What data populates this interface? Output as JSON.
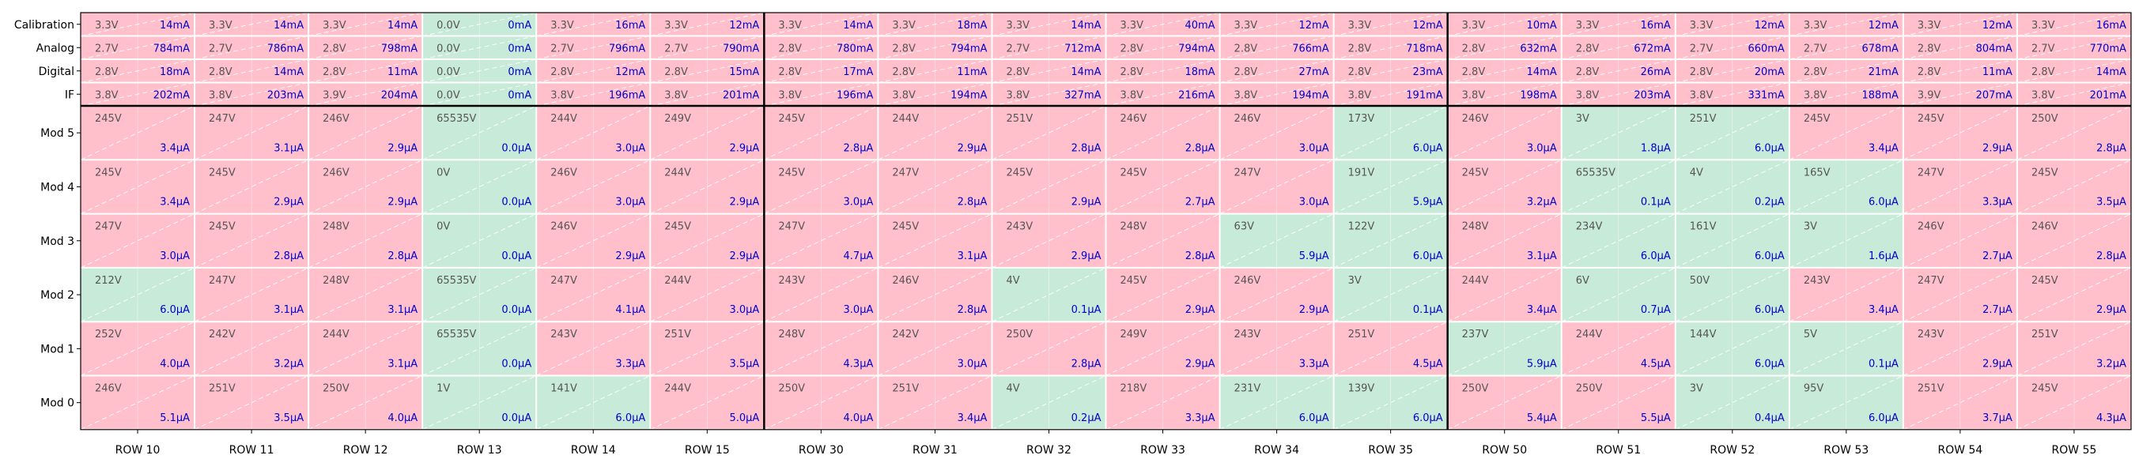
{
  "colors": {
    "fault": "#ffc0cb",
    "ok": "#c8ead8",
    "voltage_text": "#555555",
    "current_text": "#0000cc",
    "grid": "#ffffff",
    "frame": "#000000"
  },
  "chart_data": {
    "type": "heatmap",
    "title": "",
    "xlabel": "",
    "ylabel": "",
    "columns": [
      "ROW 10",
      "ROW 11",
      "ROW 12",
      "ROW 13",
      "ROW 14",
      "ROW 15",
      "ROW 30",
      "ROW 31",
      "ROW 32",
      "ROW 33",
      "ROW 34",
      "ROW 35",
      "ROW 50",
      "ROW 51",
      "ROW 52",
      "ROW 53",
      "ROW 54",
      "ROW 55"
    ],
    "group_boundaries_after_column": [
      5,
      11
    ],
    "power_rows": [
      {
        "label": "Calibration",
        "cells": [
          {
            "v": "3.3V",
            "c": "14mA"
          },
          {
            "v": "3.3V",
            "c": "14mA"
          },
          {
            "v": "3.3V",
            "c": "14mA"
          },
          {
            "v": "0.0V",
            "c": "0mA",
            "ok": true
          },
          {
            "v": "3.3V",
            "c": "16mA"
          },
          {
            "v": "3.3V",
            "c": "12mA"
          },
          {
            "v": "3.3V",
            "c": "14mA"
          },
          {
            "v": "3.3V",
            "c": "18mA"
          },
          {
            "v": "3.3V",
            "c": "14mA"
          },
          {
            "v": "3.3V",
            "c": "40mA"
          },
          {
            "v": "3.3V",
            "c": "12mA"
          },
          {
            "v": "3.3V",
            "c": "12mA"
          },
          {
            "v": "3.3V",
            "c": "10mA"
          },
          {
            "v": "3.3V",
            "c": "16mA"
          },
          {
            "v": "3.3V",
            "c": "12mA"
          },
          {
            "v": "3.3V",
            "c": "12mA"
          },
          {
            "v": "3.3V",
            "c": "12mA"
          },
          {
            "v": "3.3V",
            "c": "16mA"
          }
        ]
      },
      {
        "label": "Analog",
        "cells": [
          {
            "v": "2.7V",
            "c": "784mA"
          },
          {
            "v": "2.7V",
            "c": "786mA"
          },
          {
            "v": "2.8V",
            "c": "798mA"
          },
          {
            "v": "0.0V",
            "c": "0mA",
            "ok": true
          },
          {
            "v": "2.7V",
            "c": "796mA"
          },
          {
            "v": "2.7V",
            "c": "790mA"
          },
          {
            "v": "2.8V",
            "c": "780mA"
          },
          {
            "v": "2.8V",
            "c": "794mA"
          },
          {
            "v": "2.7V",
            "c": "712mA"
          },
          {
            "v": "2.8V",
            "c": "794mA"
          },
          {
            "v": "2.8V",
            "c": "766mA"
          },
          {
            "v": "2.8V",
            "c": "718mA"
          },
          {
            "v": "2.8V",
            "c": "632mA"
          },
          {
            "v": "2.8V",
            "c": "672mA"
          },
          {
            "v": "2.7V",
            "c": "660mA"
          },
          {
            "v": "2.7V",
            "c": "678mA"
          },
          {
            "v": "2.8V",
            "c": "804mA"
          },
          {
            "v": "2.7V",
            "c": "770mA"
          }
        ]
      },
      {
        "label": "Digital",
        "cells": [
          {
            "v": "2.8V",
            "c": "18mA"
          },
          {
            "v": "2.8V",
            "c": "14mA"
          },
          {
            "v": "2.8V",
            "c": "11mA"
          },
          {
            "v": "0.0V",
            "c": "0mA",
            "ok": true
          },
          {
            "v": "2.8V",
            "c": "12mA"
          },
          {
            "v": "2.8V",
            "c": "15mA"
          },
          {
            "v": "2.8V",
            "c": "17mA"
          },
          {
            "v": "2.8V",
            "c": "11mA"
          },
          {
            "v": "2.8V",
            "c": "14mA"
          },
          {
            "v": "2.8V",
            "c": "18mA"
          },
          {
            "v": "2.8V",
            "c": "27mA"
          },
          {
            "v": "2.8V",
            "c": "23mA"
          },
          {
            "v": "2.8V",
            "c": "14mA"
          },
          {
            "v": "2.8V",
            "c": "26mA"
          },
          {
            "v": "2.8V",
            "c": "20mA"
          },
          {
            "v": "2.8V",
            "c": "21mA"
          },
          {
            "v": "2.8V",
            "c": "11mA"
          },
          {
            "v": "2.8V",
            "c": "14mA"
          }
        ]
      },
      {
        "label": "IF",
        "cells": [
          {
            "v": "3.8V",
            "c": "202mA"
          },
          {
            "v": "3.8V",
            "c": "203mA"
          },
          {
            "v": "3.9V",
            "c": "204mA"
          },
          {
            "v": "0.0V",
            "c": "0mA",
            "ok": true
          },
          {
            "v": "3.8V",
            "c": "196mA"
          },
          {
            "v": "3.8V",
            "c": "201mA"
          },
          {
            "v": "3.8V",
            "c": "196mA"
          },
          {
            "v": "3.8V",
            "c": "194mA"
          },
          {
            "v": "3.8V",
            "c": "327mA"
          },
          {
            "v": "3.8V",
            "c": "216mA"
          },
          {
            "v": "3.8V",
            "c": "194mA"
          },
          {
            "v": "3.8V",
            "c": "191mA"
          },
          {
            "v": "3.8V",
            "c": "198mA"
          },
          {
            "v": "3.8V",
            "c": "203mA"
          },
          {
            "v": "3.8V",
            "c": "331mA"
          },
          {
            "v": "3.8V",
            "c": "188mA"
          },
          {
            "v": "3.9V",
            "c": "207mA"
          },
          {
            "v": "3.8V",
            "c": "201mA"
          }
        ]
      }
    ],
    "module_rows": [
      {
        "label": "Mod 5",
        "cells": [
          {
            "v": "245V",
            "c": "3.4µA"
          },
          {
            "v": "247V",
            "c": "3.1µA"
          },
          {
            "v": "246V",
            "c": "2.9µA"
          },
          {
            "v": "65535V",
            "c": "0.0µA",
            "ok": true
          },
          {
            "v": "244V",
            "c": "3.0µA"
          },
          {
            "v": "249V",
            "c": "2.9µA"
          },
          {
            "v": "245V",
            "c": "2.8µA"
          },
          {
            "v": "244V",
            "c": "2.9µA"
          },
          {
            "v": "251V",
            "c": "2.8µA"
          },
          {
            "v": "246V",
            "c": "2.8µA"
          },
          {
            "v": "246V",
            "c": "3.0µA"
          },
          {
            "v": "173V",
            "c": "6.0µA",
            "ok": true
          },
          {
            "v": "246V",
            "c": "3.0µA"
          },
          {
            "v": "3V",
            "c": "1.8µA",
            "ok": true
          },
          {
            "v": "251V",
            "c": "6.0µA",
            "ok": true
          },
          {
            "v": "245V",
            "c": "3.4µA"
          },
          {
            "v": "245V",
            "c": "2.9µA"
          },
          {
            "v": "250V",
            "c": "2.8µA"
          }
        ]
      },
      {
        "label": "Mod 4",
        "cells": [
          {
            "v": "245V",
            "c": "3.4µA"
          },
          {
            "v": "245V",
            "c": "2.9µA"
          },
          {
            "v": "246V",
            "c": "2.9µA"
          },
          {
            "v": "0V",
            "c": "0.0µA",
            "ok": true
          },
          {
            "v": "246V",
            "c": "3.0µA"
          },
          {
            "v": "244V",
            "c": "2.9µA"
          },
          {
            "v": "245V",
            "c": "3.0µA"
          },
          {
            "v": "247V",
            "c": "2.8µA"
          },
          {
            "v": "245V",
            "c": "2.9µA"
          },
          {
            "v": "245V",
            "c": "2.7µA"
          },
          {
            "v": "247V",
            "c": "3.0µA"
          },
          {
            "v": "191V",
            "c": "5.9µA",
            "ok": true
          },
          {
            "v": "245V",
            "c": "3.2µA"
          },
          {
            "v": "65535V",
            "c": "0.1µA",
            "ok": true
          },
          {
            "v": "4V",
            "c": "0.2µA",
            "ok": true
          },
          {
            "v": "165V",
            "c": "6.0µA",
            "ok": true
          },
          {
            "v": "247V",
            "c": "3.3µA"
          },
          {
            "v": "245V",
            "c": "3.5µA"
          }
        ]
      },
      {
        "label": "Mod 3",
        "cells": [
          {
            "v": "247V",
            "c": "3.0µA"
          },
          {
            "v": "245V",
            "c": "2.8µA"
          },
          {
            "v": "248V",
            "c": "2.8µA"
          },
          {
            "v": "0V",
            "c": "0.0µA",
            "ok": true
          },
          {
            "v": "246V",
            "c": "2.9µA"
          },
          {
            "v": "245V",
            "c": "2.9µA"
          },
          {
            "v": "247V",
            "c": "4.7µA"
          },
          {
            "v": "245V",
            "c": "3.1µA"
          },
          {
            "v": "243V",
            "c": "2.9µA"
          },
          {
            "v": "248V",
            "c": "2.8µA"
          },
          {
            "v": "63V",
            "c": "5.9µA",
            "ok": true
          },
          {
            "v": "122V",
            "c": "6.0µA",
            "ok": true
          },
          {
            "v": "248V",
            "c": "3.1µA"
          },
          {
            "v": "234V",
            "c": "6.0µA",
            "ok": true
          },
          {
            "v": "161V",
            "c": "6.0µA",
            "ok": true
          },
          {
            "v": "3V",
            "c": "1.6µA",
            "ok": true
          },
          {
            "v": "246V",
            "c": "2.7µA"
          },
          {
            "v": "246V",
            "c": "2.8µA"
          }
        ]
      },
      {
        "label": "Mod 2",
        "cells": [
          {
            "v": "212V",
            "c": "6.0µA",
            "ok": true
          },
          {
            "v": "247V",
            "c": "3.1µA"
          },
          {
            "v": "248V",
            "c": "3.1µA"
          },
          {
            "v": "65535V",
            "c": "0.0µA",
            "ok": true
          },
          {
            "v": "247V",
            "c": "4.1µA"
          },
          {
            "v": "244V",
            "c": "3.0µA"
          },
          {
            "v": "243V",
            "c": "3.0µA"
          },
          {
            "v": "246V",
            "c": "2.8µA"
          },
          {
            "v": "4V",
            "c": "0.1µA",
            "ok": true
          },
          {
            "v": "245V",
            "c": "2.9µA"
          },
          {
            "v": "246V",
            "c": "2.9µA"
          },
          {
            "v": "3V",
            "c": "0.1µA",
            "ok": true
          },
          {
            "v": "244V",
            "c": "3.4µA"
          },
          {
            "v": "6V",
            "c": "0.7µA",
            "ok": true
          },
          {
            "v": "50V",
            "c": "6.0µA",
            "ok": true
          },
          {
            "v": "243V",
            "c": "3.4µA"
          },
          {
            "v": "247V",
            "c": "2.7µA"
          },
          {
            "v": "245V",
            "c": "2.9µA"
          }
        ]
      },
      {
        "label": "Mod 1",
        "cells": [
          {
            "v": "252V",
            "c": "4.0µA"
          },
          {
            "v": "242V",
            "c": "3.2µA"
          },
          {
            "v": "244V",
            "c": "3.1µA"
          },
          {
            "v": "65535V",
            "c": "0.0µA",
            "ok": true
          },
          {
            "v": "243V",
            "c": "3.3µA"
          },
          {
            "v": "251V",
            "c": "3.5µA"
          },
          {
            "v": "248V",
            "c": "4.3µA"
          },
          {
            "v": "242V",
            "c": "3.0µA"
          },
          {
            "v": "250V",
            "c": "2.8µA"
          },
          {
            "v": "249V",
            "c": "2.9µA"
          },
          {
            "v": "243V",
            "c": "3.3µA"
          },
          {
            "v": "251V",
            "c": "4.5µA"
          },
          {
            "v": "237V",
            "c": "5.9µA",
            "ok": true
          },
          {
            "v": "244V",
            "c": "4.5µA"
          },
          {
            "v": "144V",
            "c": "6.0µA",
            "ok": true
          },
          {
            "v": "5V",
            "c": "0.1µA",
            "ok": true
          },
          {
            "v": "243V",
            "c": "2.9µA"
          },
          {
            "v": "251V",
            "c": "3.2µA"
          }
        ]
      },
      {
        "label": "Mod 0",
        "cells": [
          {
            "v": "246V",
            "c": "5.1µA"
          },
          {
            "v": "251V",
            "c": "3.5µA"
          },
          {
            "v": "250V",
            "c": "4.0µA"
          },
          {
            "v": "1V",
            "c": "0.0µA",
            "ok": true
          },
          {
            "v": "141V",
            "c": "6.0µA",
            "ok": true
          },
          {
            "v": "244V",
            "c": "5.0µA"
          },
          {
            "v": "250V",
            "c": "4.0µA"
          },
          {
            "v": "251V",
            "c": "3.4µA"
          },
          {
            "v": "4V",
            "c": "0.2µA",
            "ok": true
          },
          {
            "v": "218V",
            "c": "3.3µA"
          },
          {
            "v": "231V",
            "c": "6.0µA",
            "ok": true
          },
          {
            "v": "139V",
            "c": "6.0µA",
            "ok": true
          },
          {
            "v": "250V",
            "c": "5.4µA"
          },
          {
            "v": "250V",
            "c": "5.5µA"
          },
          {
            "v": "3V",
            "c": "0.4µA",
            "ok": true
          },
          {
            "v": "95V",
            "c": "6.0µA",
            "ok": true
          },
          {
            "v": "251V",
            "c": "3.7µA"
          },
          {
            "v": "245V",
            "c": "4.3µA"
          }
        ]
      }
    ]
  }
}
